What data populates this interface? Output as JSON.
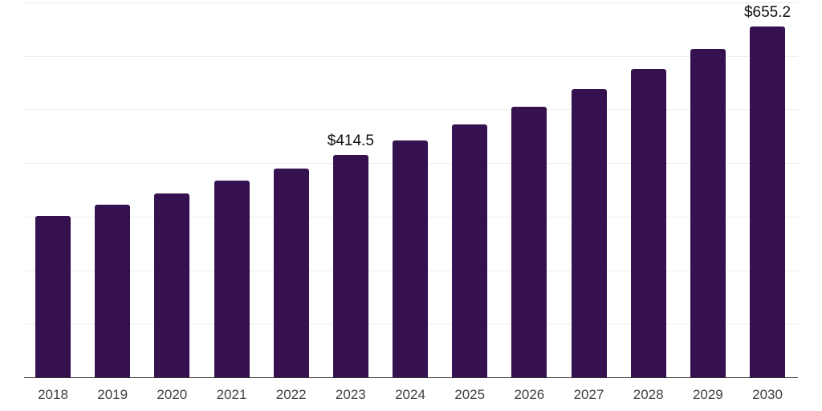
{
  "chart_data": {
    "type": "bar",
    "title": "",
    "xlabel": "",
    "ylabel": "",
    "categories": [
      "2018",
      "2019",
      "2020",
      "2021",
      "2022",
      "2023",
      "2024",
      "2025",
      "2026",
      "2027",
      "2028",
      "2029",
      "2030"
    ],
    "values": [
      301.0,
      322.5,
      344.0,
      366.5,
      390.0,
      414.5,
      442.5,
      472.4,
      504.4,
      538.5,
      574.9,
      613.7,
      655.2
    ],
    "data_labels": [
      "",
      "",
      "",
      "",
      "",
      "$414.5",
      "",
      "",
      "",
      "",
      "",
      "",
      "$655.2"
    ],
    "ylim": [
      0,
      700
    ],
    "grid_step": 100,
    "grid": true,
    "legend": "none",
    "y_axis_labels_visible": false,
    "colors": {
      "bar": "#361150",
      "gridline": "#ededed",
      "axis": "#333333",
      "x_tick_label": "#404040",
      "data_label": "#111111",
      "background": "#ffffff"
    }
  }
}
